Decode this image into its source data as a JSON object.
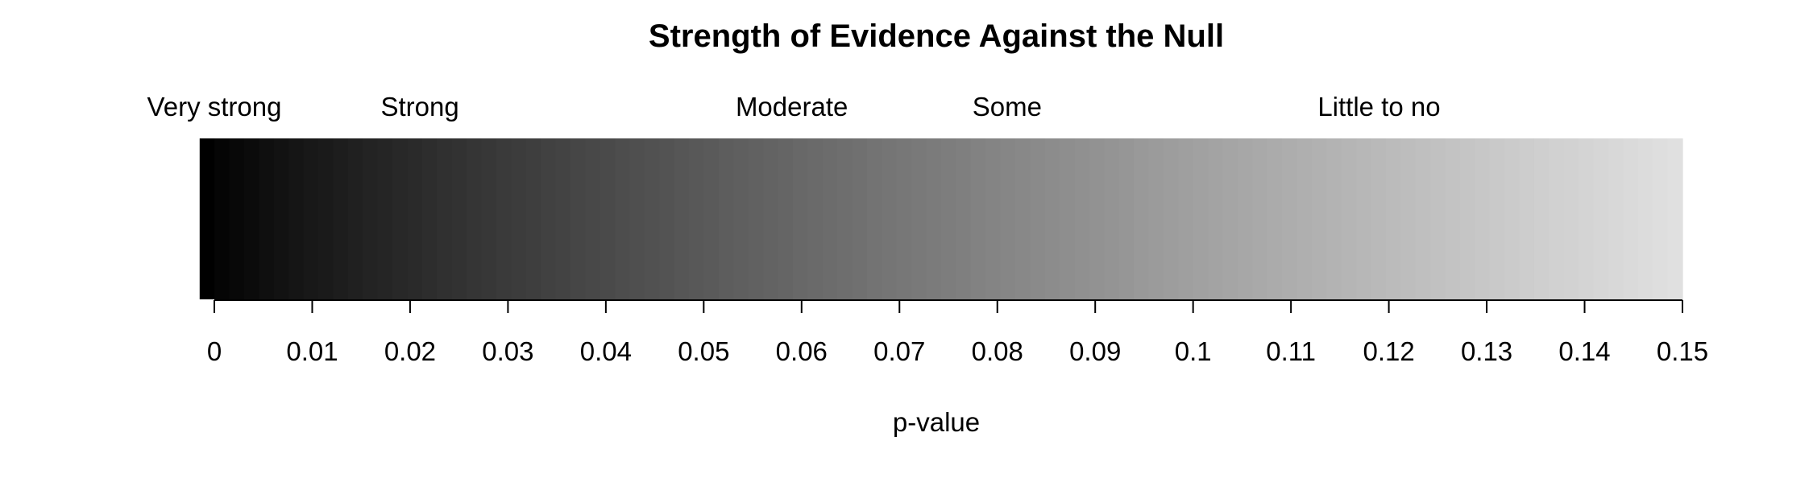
{
  "chart_data": {
    "type": "heatmap",
    "title": "Strength of Evidence Against the Null",
    "xlabel": "p-value",
    "ylabel": "",
    "xlim": [
      -0.0015,
      0.15
    ],
    "x_ticks": [
      0,
      0.01,
      0.02,
      0.03,
      0.04,
      0.05,
      0.06,
      0.07,
      0.08,
      0.09,
      0.1,
      0.11,
      0.12,
      0.13,
      0.14,
      0.15
    ],
    "tick_labels": [
      "0",
      "0.01",
      "0.02",
      "0.03",
      "0.04",
      "0.05",
      "0.06",
      "0.07",
      "0.08",
      "0.09",
      "0.1",
      "0.11",
      "0.12",
      "0.13",
      "0.14",
      "0.15"
    ],
    "gradient": {
      "from": -0.0015,
      "to": 0.15,
      "start_color": "#000000",
      "end_color": "#e0e0e0"
    },
    "evidence_bands": [
      {
        "label": "Very strong",
        "x": 0
      },
      {
        "label": "Strong",
        "x": 0.021
      },
      {
        "label": "Moderate",
        "x": 0.059
      },
      {
        "label": "Some",
        "x": 0.081
      },
      {
        "label": "Little to no",
        "x": 0.119
      }
    ],
    "grid": false,
    "legend": "none"
  }
}
